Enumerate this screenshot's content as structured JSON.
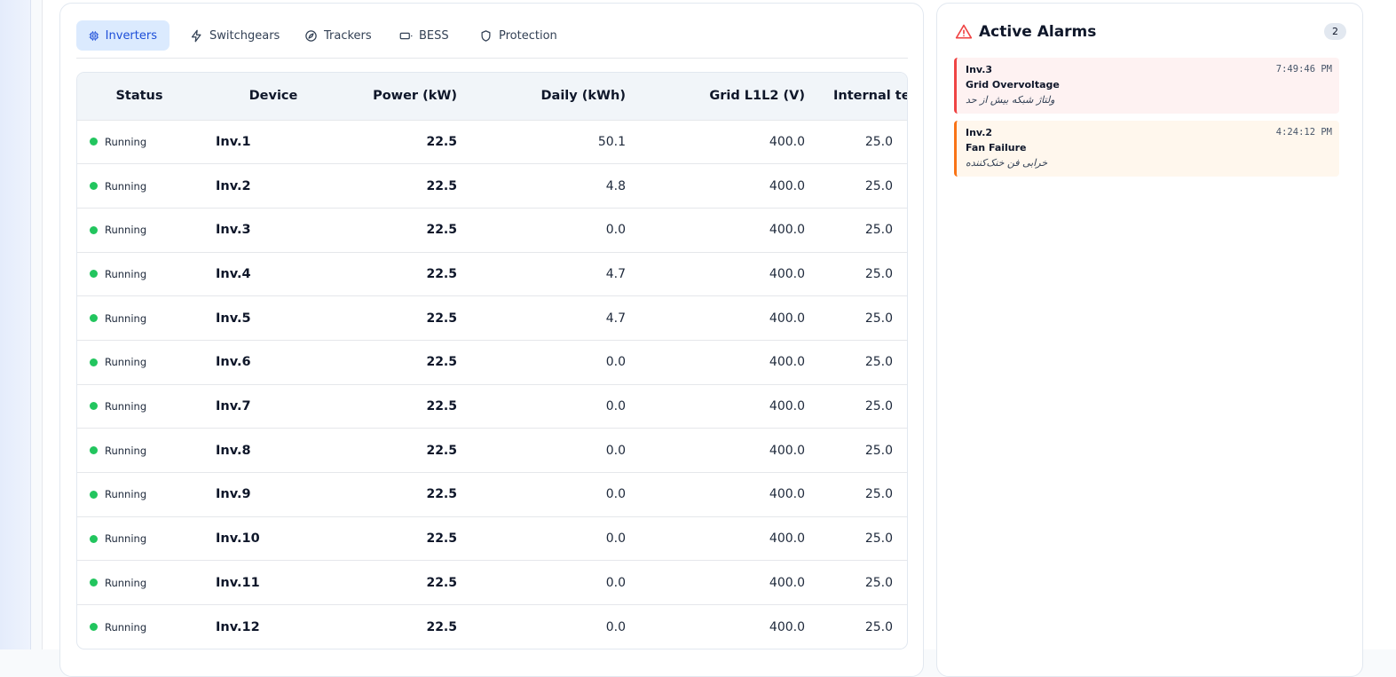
{
  "tabs": [
    {
      "label": "Inverters",
      "icon": "cpu-icon",
      "active": true
    },
    {
      "label": "Switchgears",
      "icon": "zap-icon",
      "active": false
    },
    {
      "label": "Trackers",
      "icon": "compass-icon",
      "active": false
    },
    {
      "label": "BESS",
      "icon": "battery-icon",
      "active": false
    },
    {
      "label": "Protection",
      "icon": "shield-icon",
      "active": false
    }
  ],
  "table": {
    "headers": {
      "status": "Status",
      "device": "Device",
      "power": "Power (kW)",
      "daily": "Daily (kWh)",
      "grid": "Grid L1L2 (V)",
      "temp": "Internal temp (°C)"
    },
    "rows": [
      {
        "status": "Running",
        "device": "Inv.1",
        "power": "22.5",
        "daily": "50.1",
        "grid": "400.0",
        "temp": "25.0"
      },
      {
        "status": "Running",
        "device": "Inv.2",
        "power": "22.5",
        "daily": "4.8",
        "grid": "400.0",
        "temp": "25.0"
      },
      {
        "status": "Running",
        "device": "Inv.3",
        "power": "22.5",
        "daily": "0.0",
        "grid": "400.0",
        "temp": "25.0"
      },
      {
        "status": "Running",
        "device": "Inv.4",
        "power": "22.5",
        "daily": "4.7",
        "grid": "400.0",
        "temp": "25.0"
      },
      {
        "status": "Running",
        "device": "Inv.5",
        "power": "22.5",
        "daily": "4.7",
        "grid": "400.0",
        "temp": "25.0"
      },
      {
        "status": "Running",
        "device": "Inv.6",
        "power": "22.5",
        "daily": "0.0",
        "grid": "400.0",
        "temp": "25.0"
      },
      {
        "status": "Running",
        "device": "Inv.7",
        "power": "22.5",
        "daily": "0.0",
        "grid": "400.0",
        "temp": "25.0"
      },
      {
        "status": "Running",
        "device": "Inv.8",
        "power": "22.5",
        "daily": "0.0",
        "grid": "400.0",
        "temp": "25.0"
      },
      {
        "status": "Running",
        "device": "Inv.9",
        "power": "22.5",
        "daily": "0.0",
        "grid": "400.0",
        "temp": "25.0"
      },
      {
        "status": "Running",
        "device": "Inv.10",
        "power": "22.5",
        "daily": "0.0",
        "grid": "400.0",
        "temp": "25.0"
      },
      {
        "status": "Running",
        "device": "Inv.11",
        "power": "22.5",
        "daily": "0.0",
        "grid": "400.0",
        "temp": "25.0"
      },
      {
        "status": "Running",
        "device": "Inv.12",
        "power": "22.5",
        "daily": "0.0",
        "grid": "400.0",
        "temp": "25.0"
      }
    ]
  },
  "alarms": {
    "title": "Active Alarms",
    "count": "2",
    "items": [
      {
        "device": "Inv.3",
        "title": "Grid Overvoltage",
        "subtitle": "ولتاژ شبکه بیش از حد",
        "time": "7:49:46 PM",
        "severity": "red"
      },
      {
        "device": "Inv.2",
        "title": "Fan Failure",
        "subtitle": "خرابی فن خنک‌کننده",
        "time": "4:24:12 PM",
        "severity": "orange"
      }
    ]
  },
  "colors": {
    "accent": "#1d4ed8",
    "running": "#22c55e",
    "alarm_red": "#ef4444",
    "alarm_orange": "#f97316"
  }
}
